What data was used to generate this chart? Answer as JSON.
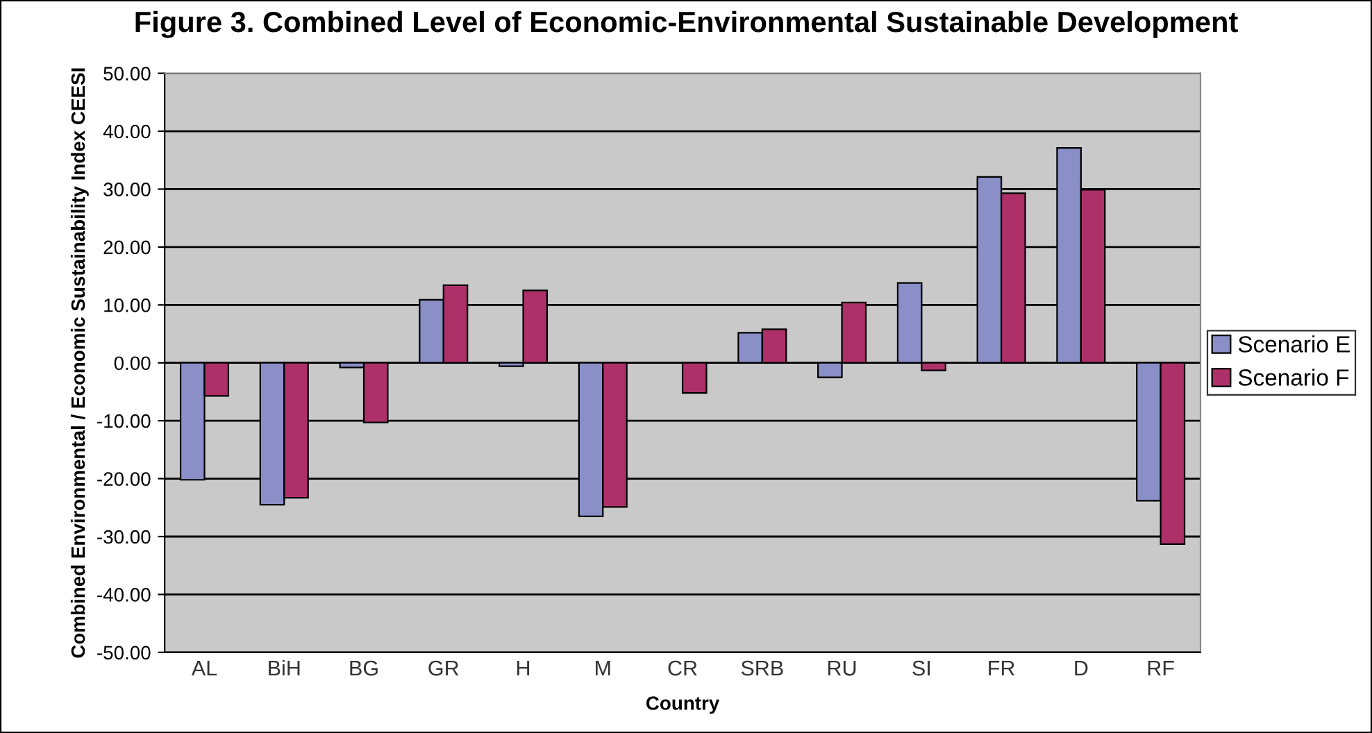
{
  "chart_data": {
    "type": "bar",
    "title": "Figure 3. Combined Level of Economic-Environmental Sustainable Development",
    "xlabel": "Country",
    "ylabel": "Combined Environmental / Economic Sustainability Index CEESI",
    "categories": [
      "AL",
      "BiH",
      "BG",
      "GR",
      "H",
      "M",
      "CR",
      "SRB",
      "RU",
      "SI",
      "FR",
      "D",
      "RF"
    ],
    "series": [
      {
        "name": "Scenario E",
        "color": "#8a8fc8",
        "values": [
          -20.2,
          -24.5,
          -0.8,
          10.9,
          -0.6,
          -26.5,
          null,
          5.2,
          -2.5,
          13.8,
          32.1,
          37.1,
          -23.8
        ]
      },
      {
        "name": "Scenario F",
        "color": "#ad3068",
        "values": [
          -5.7,
          -23.3,
          -10.3,
          13.4,
          12.5,
          -24.9,
          -5.2,
          5.8,
          10.4,
          -1.3,
          29.3,
          29.9,
          -31.3
        ]
      }
    ],
    "ylim": [
      -50,
      50
    ],
    "yticks": [
      {
        "value": -50,
        "label": "-50.00"
      },
      {
        "value": -40,
        "label": "-40.00"
      },
      {
        "value": -30,
        "label": "-30.00"
      },
      {
        "value": -20,
        "label": "-20.00"
      },
      {
        "value": -10,
        "label": "-10.00"
      },
      {
        "value": 0,
        "label": "0.00"
      },
      {
        "value": 10,
        "label": "10.00"
      },
      {
        "value": 20,
        "label": "20.00"
      },
      {
        "value": 30,
        "label": "30.00"
      },
      {
        "value": 40,
        "label": "40.00"
      },
      {
        "value": 50,
        "label": "50.00"
      }
    ],
    "grid": "y",
    "legend": "right"
  }
}
